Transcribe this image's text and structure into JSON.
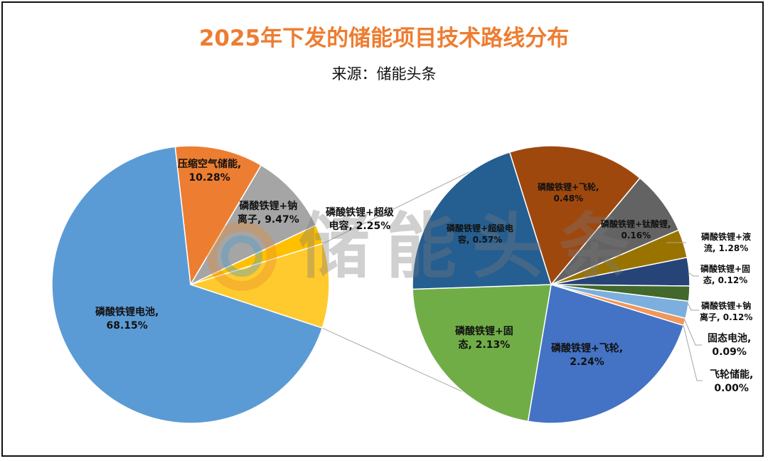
{
  "chart_data": {
    "type": "pie",
    "subtype": "pie-of-pie",
    "title": "2025年下发的储能项目技术路线分布",
    "subtitle": "来源：储能头条",
    "watermark": "储能头条",
    "primary": [
      {
        "name": "压缩空气储能",
        "value": 10.28,
        "label": "10.28%",
        "color": "#ED7D31"
      },
      {
        "name": "磷酸铁锂+钠离子",
        "value": 9.47,
        "label": "9.47%",
        "color": "#A5A5A5"
      },
      {
        "name": "磷酸铁锂+超级电容",
        "value": 2.25,
        "label": "2.25%",
        "color": "#FFC000"
      },
      {
        "name": "其他",
        "value": 9.85,
        "label": "",
        "color": "#FFCA2E"
      },
      {
        "name": "磷酸铁锂电池",
        "value": 68.15,
        "label": "68.15%",
        "color": "#5B9BD5"
      }
    ],
    "secondary": [
      {
        "name": "磷酸铁锂+飞轮",
        "value": 0.48,
        "label": "0.48%",
        "slice_share": 15.9,
        "color": "#9E480E"
      },
      {
        "name": "磷酸铁锂+钛酸锂",
        "value": 0.16,
        "label": "0.16%",
        "slice_share": 7.5,
        "color": "#636363"
      },
      {
        "name": "磷酸铁锂+液流",
        "value": 1.28,
        "label": "1.28%",
        "slice_share": 3.3,
        "color": "#997300"
      },
      {
        "name": "磷酸铁锂+固态",
        "value": 0.12,
        "label": "0.12%",
        "slice_share": 3.3,
        "color": "#264478"
      },
      {
        "name": "磷酸铁锂+钠离子",
        "value": 0.12,
        "label": "0.12%",
        "slice_share": 1.75,
        "color": "#43682B"
      },
      {
        "name": "固态电池",
        "value": 0.09,
        "label": "0.09%",
        "slice_share": 2.0,
        "color": "#7CAFDD"
      },
      {
        "name": "飞轮储能",
        "value": 0.0,
        "label": "0.00%",
        "slice_share": 0.85,
        "color": "#F1975A"
      },
      {
        "name": "磷酸铁锂+飞轮",
        "value": 2.24,
        "label": "2.24%",
        "slice_share": 22.9,
        "color": "#4472C4"
      },
      {
        "name": "磷酸铁锂+固态",
        "value": 2.13,
        "label": "2.13%",
        "slice_share": 21.8,
        "color": "#70AD47"
      },
      {
        "name": "磷酸铁锂+超级电容",
        "value": 0.57,
        "label": "0.57%",
        "slice_share": 20.7,
        "color": "#255E91"
      }
    ]
  },
  "labels": {
    "p0": [
      "压缩空气储能,",
      "10.28%"
    ],
    "p1": [
      "磷酸铁锂+钠",
      "离子, 9.47%"
    ],
    "p2": [
      "磷酸铁锂+超级",
      "电容, 2.25%"
    ],
    "p4": [
      "磷酸铁锂电池,",
      "68.15%"
    ],
    "s0": [
      "磷酸铁锂+飞轮,",
      "0.48%"
    ],
    "s1": [
      "磷酸铁锂+钛酸锂,",
      "0.16%"
    ],
    "s2": [
      "磷酸铁锂+液",
      "流, 1.28%"
    ],
    "s3": [
      "磷酸铁锂+固",
      "态, 0.12%"
    ],
    "s4": [
      "磷酸铁锂+钠",
      "离子, 0.12%"
    ],
    "s5": [
      "固态电池,",
      "0.09%"
    ],
    "s6": [
      "飞轮储能,",
      "0.00%"
    ],
    "s7": [
      "磷酸铁锂+飞轮,",
      "2.24%"
    ],
    "s8": [
      "磷酸铁锂+固",
      "态, 2.13%"
    ],
    "s9": [
      "磷酸铁锂+超级电",
      "容, 0.57%"
    ]
  }
}
